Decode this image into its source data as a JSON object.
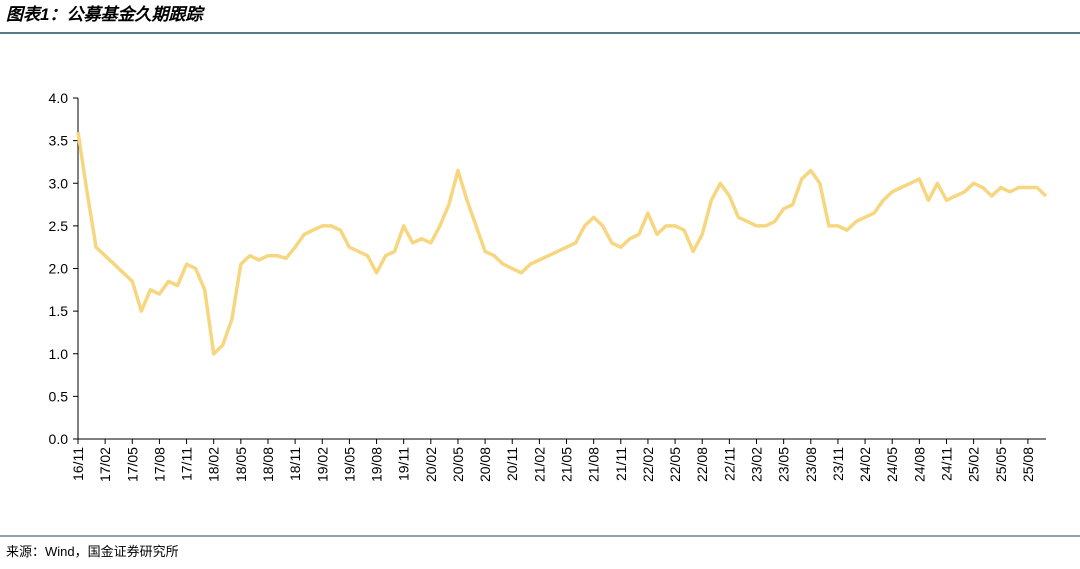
{
  "chart_data": {
    "type": "line",
    "title": "图表1：公募基金久期跟踪",
    "source": "来源：Wind，国金证券研究所",
    "categories": [
      "16/11",
      null,
      null,
      "17/02",
      null,
      null,
      "17/05",
      null,
      null,
      "17/08",
      null,
      null,
      "17/11",
      null,
      null,
      "18/02",
      null,
      null,
      "18/05",
      null,
      null,
      "18/08",
      null,
      null,
      "18/11",
      null,
      null,
      "19/02",
      null,
      null,
      "19/05",
      null,
      null,
      "19/08",
      null,
      null,
      "19/11",
      null,
      null,
      "20/02",
      null,
      null,
      "20/05",
      null,
      null,
      "20/08",
      null,
      null,
      "20/11",
      null,
      null,
      "21/02",
      null,
      null,
      "21/05",
      null,
      null,
      "21/08",
      null,
      null,
      "21/11",
      null,
      null,
      "22/02",
      null,
      null,
      "22/05",
      null,
      null,
      "22/08",
      null,
      null,
      "22/11",
      null,
      null,
      "23/02",
      null,
      null,
      "23/05",
      null,
      null,
      "23/08",
      null,
      null,
      "23/11",
      null,
      null,
      "24/02",
      null,
      null,
      "24/05",
      null,
      null,
      "24/08",
      null,
      null,
      "24/11",
      null,
      null,
      "25/02",
      null,
      null,
      "25/05",
      null,
      null,
      "25/08",
      null,
      null
    ],
    "values": [
      3.6,
      2.9,
      2.25,
      2.15,
      2.05,
      1.95,
      1.85,
      1.5,
      1.75,
      1.7,
      1.85,
      1.8,
      2.05,
      2.0,
      1.75,
      1.0,
      1.1,
      1.4,
      2.05,
      2.15,
      2.1,
      2.15,
      2.15,
      2.12,
      2.25,
      2.4,
      2.45,
      2.5,
      2.5,
      2.45,
      2.25,
      2.2,
      2.15,
      1.95,
      2.15,
      2.2,
      2.5,
      2.3,
      2.35,
      2.3,
      2.5,
      2.75,
      3.15,
      2.8,
      2.5,
      2.2,
      2.15,
      2.05,
      2.0,
      1.95,
      2.05,
      2.1,
      2.15,
      2.2,
      2.25,
      2.3,
      2.5,
      2.6,
      2.5,
      2.3,
      2.25,
      2.35,
      2.4,
      2.65,
      2.4,
      2.5,
      2.5,
      2.45,
      2.2,
      2.4,
      2.8,
      3.0,
      2.85,
      2.6,
      2.55,
      2.5,
      2.5,
      2.55,
      2.7,
      2.75,
      3.05,
      3.15,
      3.0,
      2.5,
      2.5,
      2.45,
      2.55,
      2.6,
      2.65,
      2.8,
      2.9,
      2.95,
      3.0,
      3.05,
      2.8,
      3.0,
      2.8,
      2.85,
      2.9,
      3.0,
      2.95,
      2.85,
      2.95,
      2.9,
      2.95,
      2.95,
      2.95,
      2.85
    ],
    "color": "#f6d77f",
    "ylim": [
      0,
      4
    ],
    "yticks": [
      {
        "value": 0,
        "label": "0.0"
      },
      0.5,
      {
        "value": 1,
        "label": "1.0"
      },
      1.5,
      {
        "value": 2,
        "label": "2.0"
      },
      2.5,
      {
        "value": 3,
        "label": "3.0"
      },
      3.5,
      {
        "value": 4,
        "label": "4.0"
      }
    ]
  }
}
